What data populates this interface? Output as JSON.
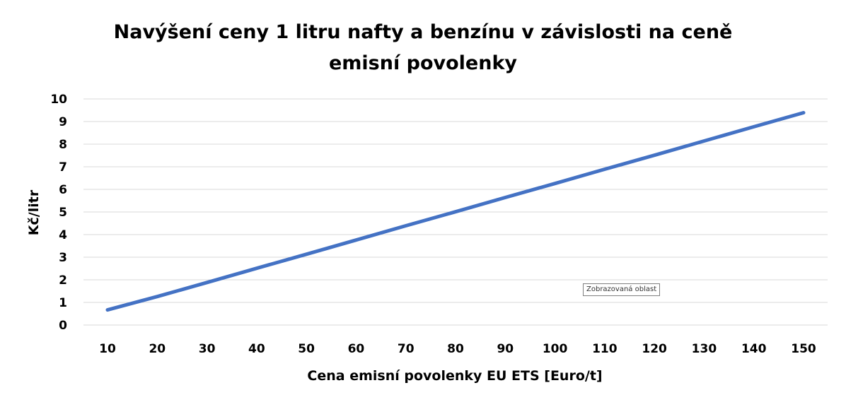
{
  "chart_data": {
    "type": "line",
    "title_lines": [
      "Navýšení ceny 1 litru nafty a benzínu v závislosti na ceně",
      "emisní povolenky"
    ],
    "xlabel": "Cena emisní povolenky EU ETS [Euro/t]",
    "ylabel": "Kč/litr",
    "x": [
      10,
      20,
      30,
      40,
      50,
      60,
      70,
      80,
      90,
      100,
      110,
      120,
      130,
      140,
      150
    ],
    "series": [
      {
        "values": [
          0.67,
          1.26,
          1.88,
          2.51,
          3.13,
          3.76,
          4.39,
          5.01,
          5.64,
          6.26,
          6.89,
          7.51,
          8.14,
          8.77,
          9.39
        ]
      }
    ],
    "ylim": [
      0,
      10
    ],
    "yticks": [
      0,
      1,
      2,
      3,
      4,
      5,
      6,
      7,
      8,
      9,
      10
    ],
    "grid": true,
    "legend": false,
    "line_color": "#4472C4",
    "grid_color": "#d9d9d9"
  },
  "tooltip": "Zobrazovaná oblast"
}
